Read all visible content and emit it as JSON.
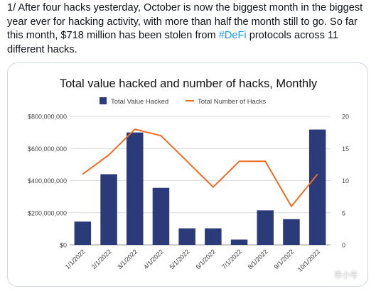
{
  "tweet": {
    "text_before_hashtag": "1/ After four hacks yesterday, October is now the biggest month in the biggest year ever for hacking activity, with more than half the month still to go. So far this month, $718 million has been stolen from ",
    "hashtag": "#DeFi",
    "text_after_hashtag": " protocols across 11 different hacks."
  },
  "watermark": "非小号",
  "colors": {
    "bar": "#2b3a78",
    "line": "#f26b21",
    "grid": "#d9d9d9",
    "hashtag": "#1d9bf0"
  },
  "chart_data": {
    "type": "bar",
    "title": "Total value hacked and number of hacks, Monthly",
    "categories": [
      "1/1/2022",
      "2/1/2022",
      "3/1/2022",
      "4/1/2022",
      "5/1/2022",
      "6/1/2022",
      "7/1/2022",
      "8/1/2022",
      "9/1/2022",
      "10/1/2022"
    ],
    "series": [
      {
        "name": "Total Value Hacked",
        "type": "bar",
        "axis": "left",
        "values": [
          145000000,
          440000000,
          700000000,
          355000000,
          103000000,
          103000000,
          33000000,
          215000000,
          160000000,
          718000000
        ]
      },
      {
        "name": "Total Number of Hacks",
        "type": "line",
        "axis": "right",
        "values": [
          11,
          14,
          18,
          17,
          13,
          9,
          13,
          13,
          6,
          11
        ]
      }
    ],
    "y_left": {
      "ylim": [
        0,
        800000000
      ],
      "ticks": [
        "$800,000,000",
        "$600,000,000",
        "$400,000,000",
        "$200,000,000",
        "$0"
      ]
    },
    "y_right": {
      "ylim": [
        0,
        20
      ],
      "ticks": [
        "20",
        "15",
        "10",
        "5",
        "0"
      ]
    },
    "grid": true,
    "legend": "top-center"
  }
}
